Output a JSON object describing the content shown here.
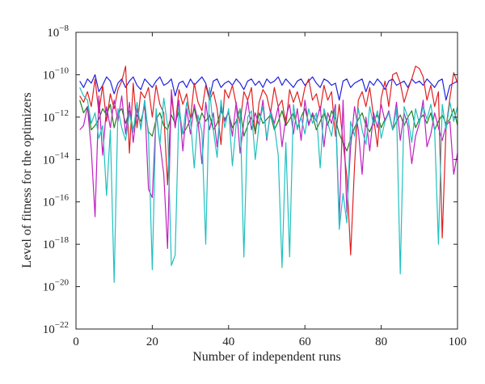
{
  "chart_data": {
    "type": "line",
    "title": "",
    "xlabel": "Number of independent runs",
    "ylabel": "Level of fitness for the optimizers",
    "xlim": [
      0,
      100
    ],
    "ylim_log10": [
      -22,
      -8
    ],
    "y_scale": "log",
    "grid": false,
    "x_ticks": [
      0,
      20,
      40,
      60,
      80,
      100
    ],
    "y_ticks_exponents": [
      -22,
      -20,
      -18,
      -16,
      -14,
      -12,
      -10,
      -8
    ],
    "y_tick_base": "10",
    "x": [
      1,
      2,
      3,
      4,
      5,
      6,
      7,
      8,
      9,
      10,
      11,
      12,
      13,
      14,
      15,
      16,
      17,
      18,
      19,
      20,
      21,
      22,
      23,
      24,
      25,
      26,
      27,
      28,
      29,
      30,
      31,
      32,
      33,
      34,
      35,
      36,
      37,
      38,
      39,
      40,
      41,
      42,
      43,
      44,
      45,
      46,
      47,
      48,
      49,
      50,
      51,
      52,
      53,
      54,
      55,
      56,
      57,
      58,
      59,
      60,
      61,
      62,
      63,
      64,
      65,
      66,
      67,
      68,
      69,
      70,
      71,
      72,
      73,
      74,
      75,
      76,
      77,
      78,
      79,
      80,
      81,
      82,
      83,
      84,
      85,
      86,
      87,
      88,
      89,
      90,
      91,
      92,
      93,
      94,
      95,
      96,
      97,
      98,
      99,
      100
    ],
    "series": [
      {
        "color": "#2020e0",
        "log10_values": [
          -10.3,
          -10.6,
          -10.2,
          -10.4,
          -10.0,
          -10.8,
          -10.5,
          -10.1,
          -10.3,
          -10.9,
          -10.4,
          -10.2,
          -10.6,
          -10.3,
          -10.1,
          -10.5,
          -10.7,
          -10.2,
          -10.4,
          -10.6,
          -10.3,
          -10.1,
          -10.5,
          -10.4,
          -10.2,
          -11.0,
          -10.4,
          -10.3,
          -10.6,
          -10.2,
          -10.5,
          -10.3,
          -10.1,
          -10.4,
          -11.1,
          -10.3,
          -10.2,
          -10.6,
          -10.4,
          -10.3,
          -10.5,
          -10.2,
          -10.4,
          -10.7,
          -10.3,
          -10.2,
          -10.5,
          -10.3,
          -10.6,
          -10.2,
          -10.4,
          -10.3,
          -10.1,
          -10.5,
          -10.2,
          -10.4,
          -10.6,
          -10.3,
          -10.2,
          -10.5,
          -10.3,
          -10.1,
          -10.4,
          -10.6,
          -10.2,
          -10.3,
          -10.5,
          -10.4,
          -11.2,
          -10.3,
          -10.2,
          -10.6,
          -10.4,
          -10.3,
          -10.2,
          -10.8,
          -10.3,
          -10.5,
          -10.2,
          -10.4,
          -10.7,
          -10.3,
          -10.2,
          -10.5,
          -10.4,
          -10.3,
          -10.6,
          -10.2,
          -10.4,
          -10.3,
          -10.5,
          -10.2,
          -10.4,
          -10.6,
          -10.3,
          -10.2,
          -11.2,
          -10.5,
          -10.4,
          -10.3
        ]
      },
      {
        "color": "#e02020",
        "log10_values": [
          -11.0,
          -11.3,
          -10.8,
          -11.5,
          -10.2,
          -11.8,
          -10.5,
          -12.2,
          -10.9,
          -11.6,
          -10.7,
          -10.3,
          -9.6,
          -13.7,
          -10.4,
          -12.5,
          -10.8,
          -11.1,
          -10.6,
          -12.0,
          -10.5,
          -11.4,
          -11.8,
          -15.2,
          -11.0,
          -12.5,
          -10.7,
          -11.4,
          -10.9,
          -12.1,
          -10.4,
          -11.3,
          -11.7,
          -10.5,
          -11.2,
          -10.8,
          -11.6,
          -13.3,
          -10.7,
          -11.1,
          -10.5,
          -11.4,
          -12.3,
          -10.8,
          -11.2,
          -10.6,
          -12.8,
          -11.3,
          -10.7,
          -11.0,
          -11.8,
          -10.6,
          -11.5,
          -11.2,
          -12.4,
          -10.7,
          -11.3,
          -10.8,
          -11.5,
          -10.6,
          -10.2,
          -11.2,
          -10.9,
          -11.7,
          -10.5,
          -11.2,
          -10.8,
          -12.9,
          -11.4,
          -13.2,
          -14.8,
          -18.5,
          -14.3,
          -11.2,
          -10.8,
          -11.5,
          -10.6,
          -12.0,
          -13.4,
          -11.1,
          -10.3,
          -11.5,
          -10.0,
          -9.9,
          -10.4,
          -11.3,
          -10.7,
          -10.2,
          -9.6,
          -9.7,
          -10.1,
          -11.2,
          -10.5,
          -11.5,
          -10.8,
          -17.7,
          -12.5,
          -11.1,
          -9.9,
          -10.4
        ]
      },
      {
        "color": "#208020",
        "log10_values": [
          -11.2,
          -11.8,
          -11.5,
          -12.6,
          -12.4,
          -12.1,
          -11.6,
          -11.9,
          -11.4,
          -12.5,
          -11.8,
          -11.6,
          -12.3,
          -11.7,
          -12.6,
          -11.9,
          -12.2,
          -11.5,
          -12.7,
          -12.9,
          -12.1,
          -11.8,
          -12.4,
          -12.6,
          -11.9,
          -12.3,
          -11.7,
          -12.8,
          -12.5,
          -12.1,
          -11.6,
          -12.4,
          -11.8,
          -12.2,
          -11.9,
          -12.6,
          -12.3,
          -11.7,
          -12.1,
          -11.8,
          -12.5,
          -12.2,
          -11.6,
          -12.9,
          -12.4,
          -12.0,
          -12.7,
          -11.8,
          -12.3,
          -12.1,
          -11.9,
          -12.6,
          -12.2,
          -11.7,
          -12.4,
          -12.1,
          -11.8,
          -12.5,
          -12.0,
          -11.6,
          -12.3,
          -11.9,
          -12.6,
          -12.2,
          -11.8,
          -12.4,
          -11.7,
          -12.1,
          -12.8,
          -13.2,
          -13.6,
          -13.0,
          -12.5,
          -12.1,
          -11.8,
          -12.4,
          -12.7,
          -12.2,
          -11.9,
          -12.5,
          -12.1,
          -11.8,
          -12.6,
          -12.2,
          -11.9,
          -12.4,
          -12.0,
          -11.7,
          -12.5,
          -12.1,
          -11.9,
          -12.3,
          -11.8,
          -12.6,
          -12.2,
          -11.9,
          -12.3,
          -12.1,
          -11.6,
          -12.4
        ]
      },
      {
        "color": "#c020c0",
        "log10_values": [
          -12.6,
          -12.4,
          -11.5,
          -13.5,
          -16.7,
          -11.0,
          -13.8,
          -11.5,
          -12.5,
          -11.2,
          -12.2,
          -11.0,
          -12.8,
          -11.3,
          -13.2,
          -11.6,
          -12.5,
          -11.2,
          -15.4,
          -15.8,
          -11.8,
          -13.2,
          -14.7,
          -18.2,
          -10.7,
          -12.5,
          -11.2,
          -13.6,
          -11.6,
          -12.8,
          -11.4,
          -12.2,
          -14.2,
          -11.3,
          -12.6,
          -11.8,
          -13.4,
          -11.5,
          -12.2,
          -11.7,
          -12.9,
          -11.3,
          -13.7,
          -12.2,
          -11.2,
          -12.6,
          -11.8,
          -12.4,
          -11.2,
          -13.1,
          -11.7,
          -12.3,
          -11.5,
          -13.4,
          -12.0,
          -11.4,
          -12.8,
          -11.6,
          -13.1,
          -11.2,
          -12.4,
          -11.8,
          -12.2,
          -11.5,
          -13.4,
          -11.8,
          -12.3,
          -11.4,
          -16.9,
          -11.2,
          -16.5,
          -13.4,
          -11.5,
          -12.6,
          -14.7,
          -12.0,
          -13.6,
          -11.8,
          -12.5,
          -11.4,
          -12.2,
          -11.7,
          -12.6,
          -11.3,
          -13.1,
          -11.8,
          -12.4,
          -14.2,
          -12.9,
          -12.3,
          -11.2,
          -13.4,
          -12.8,
          -11.8,
          -12.5,
          -13.1,
          -12.4,
          -12.2,
          -14.7,
          -13.7
        ]
      },
      {
        "color": "#20c0c0",
        "log10_values": [
          -10.6,
          -11.0,
          -11.2,
          -12.3,
          -11.8,
          -13.0,
          -12.4,
          -15.7,
          -12.6,
          -19.8,
          -11.6,
          -12.5,
          -13.1,
          -11.8,
          -12.7,
          -11.3,
          -12.6,
          -11.2,
          -12.9,
          -19.2,
          -11.6,
          -13.3,
          -11.1,
          -12.4,
          -19.0,
          -18.5,
          -11.5,
          -12.8,
          -11.3,
          -12.1,
          -14.4,
          -11.9,
          -12.7,
          -18.0,
          -10.6,
          -12.6,
          -13.9,
          -11.2,
          -12.5,
          -11.6,
          -14.3,
          -12.3,
          -11.6,
          -18.6,
          -12.0,
          -11.7,
          -14.0,
          -12.3,
          -11.5,
          -13.0,
          -11.8,
          -12.4,
          -13.8,
          -19.1,
          -13.2,
          -18.6,
          -11.4,
          -12.6,
          -12.0,
          -12.8,
          -11.6,
          -12.3,
          -11.8,
          -14.4,
          -11.6,
          -12.3,
          -12.9,
          -11.6,
          -17.3,
          -15.6,
          -17.0,
          -12.2,
          -12.9,
          -11.6,
          -12.6,
          -13.3,
          -11.5,
          -12.4,
          -11.7,
          -13.0,
          -12.2,
          -11.8,
          -12.6,
          -11.6,
          -19.4,
          -11.5,
          -12.0,
          -13.2,
          -11.6,
          -12.3,
          -11.5,
          -12.1,
          -11.4,
          -12.6,
          -18.0,
          -11.4,
          -12.6,
          -11.3,
          -12.2,
          -11.5
        ]
      }
    ]
  }
}
